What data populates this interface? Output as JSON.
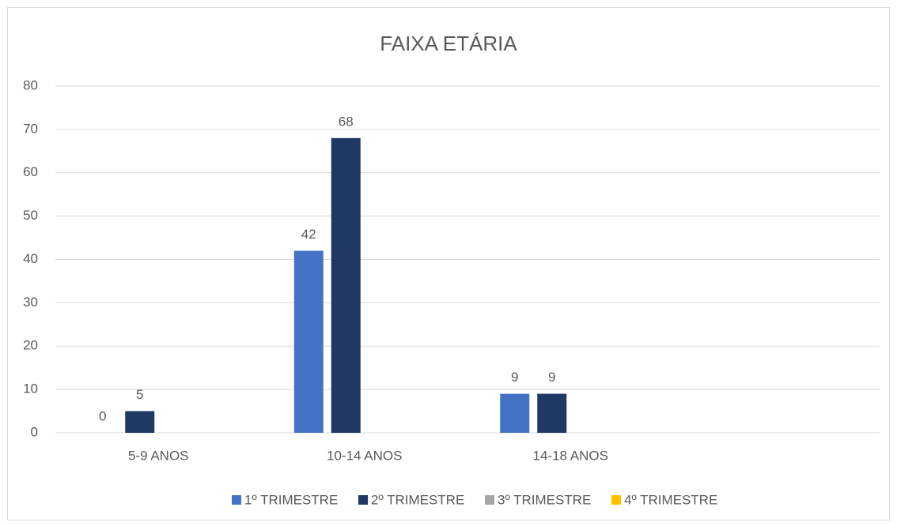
{
  "chart_data": {
    "type": "bar",
    "title": "FAIXA ETÁRIA",
    "categories": [
      "5-9 ANOS",
      "10-14 ANOS",
      "14-18 ANOS",
      null
    ],
    "series": [
      {
        "name": "1º TRIMESTRE",
        "color": "#4472c4",
        "values": [
          0,
          42,
          9,
          null
        ]
      },
      {
        "name": "2º TRIMESTRE",
        "color": "#203864",
        "values": [
          5,
          68,
          9,
          null
        ]
      },
      {
        "name": "3º TRIMESTRE",
        "color": "#a5a5a5",
        "values": [
          null,
          null,
          null,
          null
        ]
      },
      {
        "name": "4º TRIMESTRE",
        "color": "#ffc000",
        "values": [
          null,
          null,
          null,
          null
        ]
      }
    ],
    "ylim": [
      0,
      80
    ],
    "yticks": [
      0,
      10,
      20,
      30,
      40,
      50,
      60,
      70,
      80
    ],
    "grid": true,
    "legend": "bottom"
  }
}
